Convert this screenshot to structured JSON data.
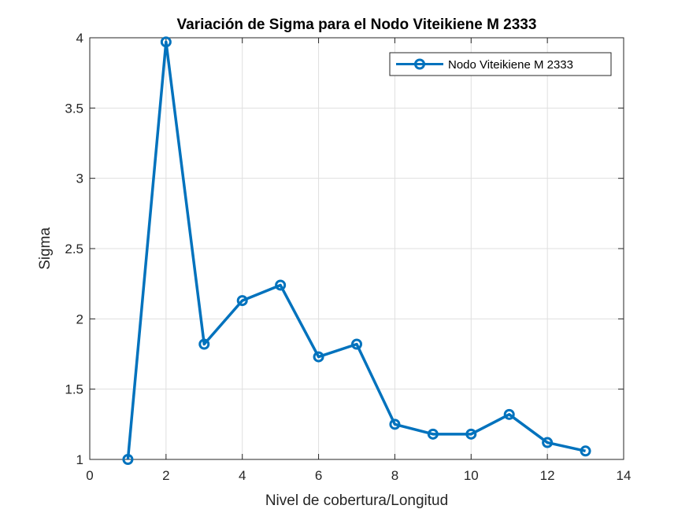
{
  "chart_data": {
    "type": "line",
    "title": "Variación de Sigma para el Nodo Viteikiene M 2333",
    "xlabel": "Nivel de cobertura/Longitud",
    "ylabel": "Sigma",
    "xlim": [
      0,
      14
    ],
    "ylim": [
      1,
      4
    ],
    "xticks": [
      0,
      2,
      4,
      6,
      8,
      10,
      12,
      14
    ],
    "yticks": [
      1,
      1.5,
      2,
      2.5,
      3,
      3.5,
      4
    ],
    "xtick_labels": [
      "0",
      "2",
      "4",
      "6",
      "8",
      "10",
      "12",
      "14"
    ],
    "ytick_labels": [
      "1",
      "1.5",
      "2",
      "2.5",
      "3",
      "3.5",
      "4"
    ],
    "grid": true,
    "legend_position": "top-right",
    "series": [
      {
        "name": "Nodo Viteikiene M 2333",
        "color": "#0072BD",
        "marker": "circle",
        "x": [
          1,
          2,
          3,
          4,
          5,
          6,
          7,
          8,
          9,
          10,
          11,
          12,
          13
        ],
        "y": [
          1.0,
          3.97,
          1.82,
          2.13,
          2.24,
          1.73,
          1.82,
          1.25,
          1.18,
          1.18,
          1.32,
          1.12,
          1.06
        ]
      }
    ]
  }
}
